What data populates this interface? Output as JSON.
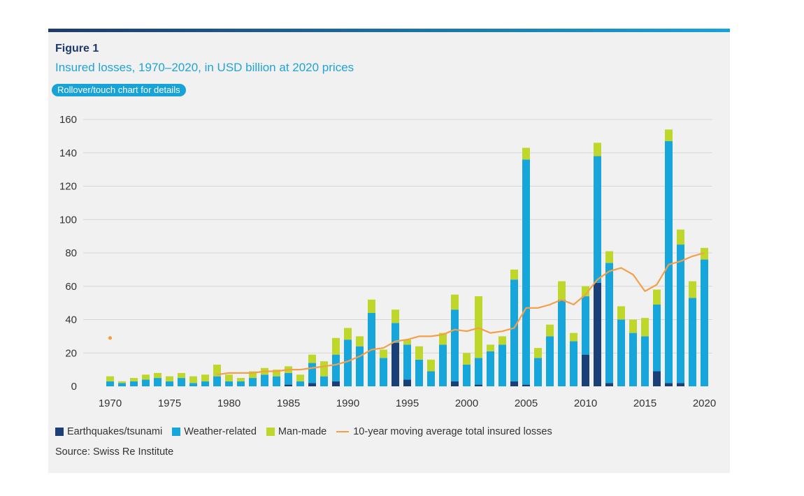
{
  "figure": {
    "label": "Figure 1",
    "title": "Insured losses, 1970–2020, in USD billion at 2020 prices",
    "rollover_hint": "Rollover/touch chart for details",
    "source": "Source: Swiss Re Institute"
  },
  "colors": {
    "earthquake": "#1b3f77",
    "weather": "#17a6dc",
    "manmade": "#bfd72a",
    "average": "#f2a04a",
    "grid": "#d6d6d6",
    "topbar_left": "#1d3a6b",
    "topbar_right": "#18a3d8"
  },
  "chart_data": {
    "type": "bar",
    "stacked": true,
    "ylim": [
      0,
      160
    ],
    "yticks": [
      0,
      20,
      40,
      60,
      80,
      100,
      120,
      140,
      160
    ],
    "xticks": [
      1970,
      1975,
      1980,
      1985,
      1990,
      1995,
      2000,
      2005,
      2010,
      2015,
      2020
    ],
    "grid": true,
    "legend_position": "bottom",
    "categories": [
      1970,
      1971,
      1972,
      1973,
      1974,
      1975,
      1976,
      1977,
      1978,
      1979,
      1980,
      1981,
      1982,
      1983,
      1984,
      1985,
      1986,
      1987,
      1988,
      1989,
      1990,
      1991,
      1992,
      1993,
      1994,
      1995,
      1996,
      1997,
      1998,
      1999,
      2000,
      2001,
      2002,
      2003,
      2004,
      2005,
      2006,
      2007,
      2008,
      2009,
      2010,
      2011,
      2012,
      2013,
      2014,
      2015,
      2016,
      2017,
      2018,
      2019,
      2020
    ],
    "series": [
      {
        "name": "Earthquakes/tsunami",
        "key": "earthquake",
        "values": [
          0,
          0,
          0,
          0,
          0,
          0,
          0,
          0,
          0,
          0,
          0,
          0,
          0,
          0,
          0,
          1,
          0,
          2,
          0,
          3,
          0,
          0,
          0,
          0,
          26,
          4,
          0,
          0,
          0,
          3,
          0,
          1,
          0,
          0,
          3,
          1,
          0,
          0,
          0,
          0,
          19,
          62,
          2,
          0,
          0,
          0,
          9,
          2,
          2,
          0,
          0
        ]
      },
      {
        "name": "Weather-related",
        "key": "weather",
        "values": [
          3,
          2,
          3,
          4,
          5,
          3,
          5,
          2,
          3,
          6,
          3,
          3,
          5,
          7,
          6,
          7,
          3,
          12,
          6,
          16,
          28,
          24,
          44,
          17,
          12,
          21,
          16,
          9,
          25,
          43,
          13,
          16,
          21,
          25,
          61,
          135,
          17,
          30,
          52,
          27,
          35,
          76,
          72,
          40,
          32,
          30,
          40,
          145,
          83,
          53,
          76
        ]
      },
      {
        "name": "Man-made",
        "key": "manmade",
        "values": [
          3,
          1,
          2,
          3,
          3,
          3,
          3,
          4,
          4,
          7,
          4,
          2,
          4,
          4,
          4,
          4,
          4,
          5,
          9,
          10,
          7,
          6,
          8,
          5,
          8,
          3,
          8,
          7,
          7,
          9,
          7,
          37,
          4,
          5,
          6,
          7,
          6,
          7,
          11,
          5,
          6,
          8,
          7,
          8,
          8,
          11,
          9,
          7,
          9,
          10,
          7
        ]
      },
      {
        "name": "10-year moving average total insured losses",
        "key": "average",
        "type": "line",
        "x": [
          1970,
          1979,
          1980,
          1981,
          1982,
          1983,
          1984,
          1985,
          1986,
          1987,
          1988,
          1989,
          1990,
          1991,
          1992,
          1993,
          1994,
          1995,
          1996,
          1997,
          1998,
          1999,
          2000,
          2001,
          2002,
          2003,
          2004,
          2005,
          2006,
          2007,
          2008,
          2009,
          2010,
          2011,
          2012,
          2013,
          2014,
          2015,
          2016,
          2017,
          2018,
          2019,
          2020
        ],
        "values": [
          29,
          7,
          8,
          8,
          8,
          9,
          9,
          10,
          10,
          11,
          12,
          13,
          15,
          18,
          22,
          23,
          27,
          28,
          30,
          30,
          31,
          34,
          33,
          35,
          32,
          33,
          35,
          47,
          47,
          49,
          52,
          49,
          55,
          64,
          69,
          71,
          67,
          57,
          61,
          73,
          75,
          78,
          80
        ]
      }
    ]
  }
}
